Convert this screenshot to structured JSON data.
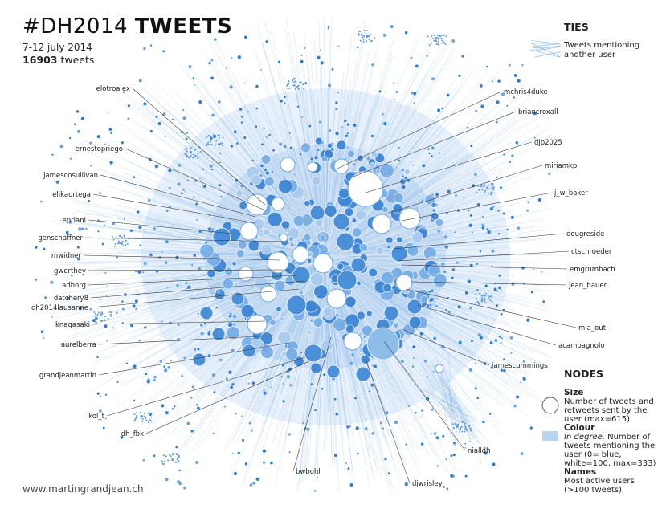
{
  "header": {
    "title_hash": "#DH2014",
    "title_bold": "TWEETS",
    "dates": "7-12 july 2014",
    "count_number": "16903",
    "count_suffix": " tweets"
  },
  "credit": "www.martingrandjean.ch",
  "legend": {
    "ties_heading": "TIES",
    "ties_text": "Tweets mentioning another user",
    "nodes_heading": "NODES",
    "size_heading": "Size",
    "size_text": "Number of tweets and retweets sent by the user (max=615)",
    "colour_heading": "Colour",
    "colour_italic": "In degree.",
    "colour_text": " Number of tweets mentioning the user (0= blue, white=100, max=333)",
    "names_heading": "Names",
    "names_text": "Most active users (>100 tweets)"
  },
  "colors": {
    "node_blue": "#2f7fd1",
    "node_white": "#ffffff",
    "edge": "#7fb2e5",
    "legend_fill": "#b8d4f0"
  },
  "users": [
    "elotroalex",
    "ernestopriego",
    "jamescosullivan",
    "elikaortega",
    "epriani",
    "genschaffner",
    "mwidner",
    "gworthey",
    "adhorg",
    "datchery8",
    "dh2014lausanne",
    "knagasaki",
    "aurelberra",
    "grandjeanmartin",
    "kol_t",
    "dh_fbk",
    "bwbohl",
    "djwrisley",
    "nialldh",
    "jamescummings",
    "acampagnolo",
    "mia_out",
    "jean_bauer",
    "emgrumbach",
    "ctschroeder",
    "dougreside",
    "j_w_baker",
    "miriamkp",
    "djp2025",
    "briancroxall",
    "mchris4duke"
  ]
}
